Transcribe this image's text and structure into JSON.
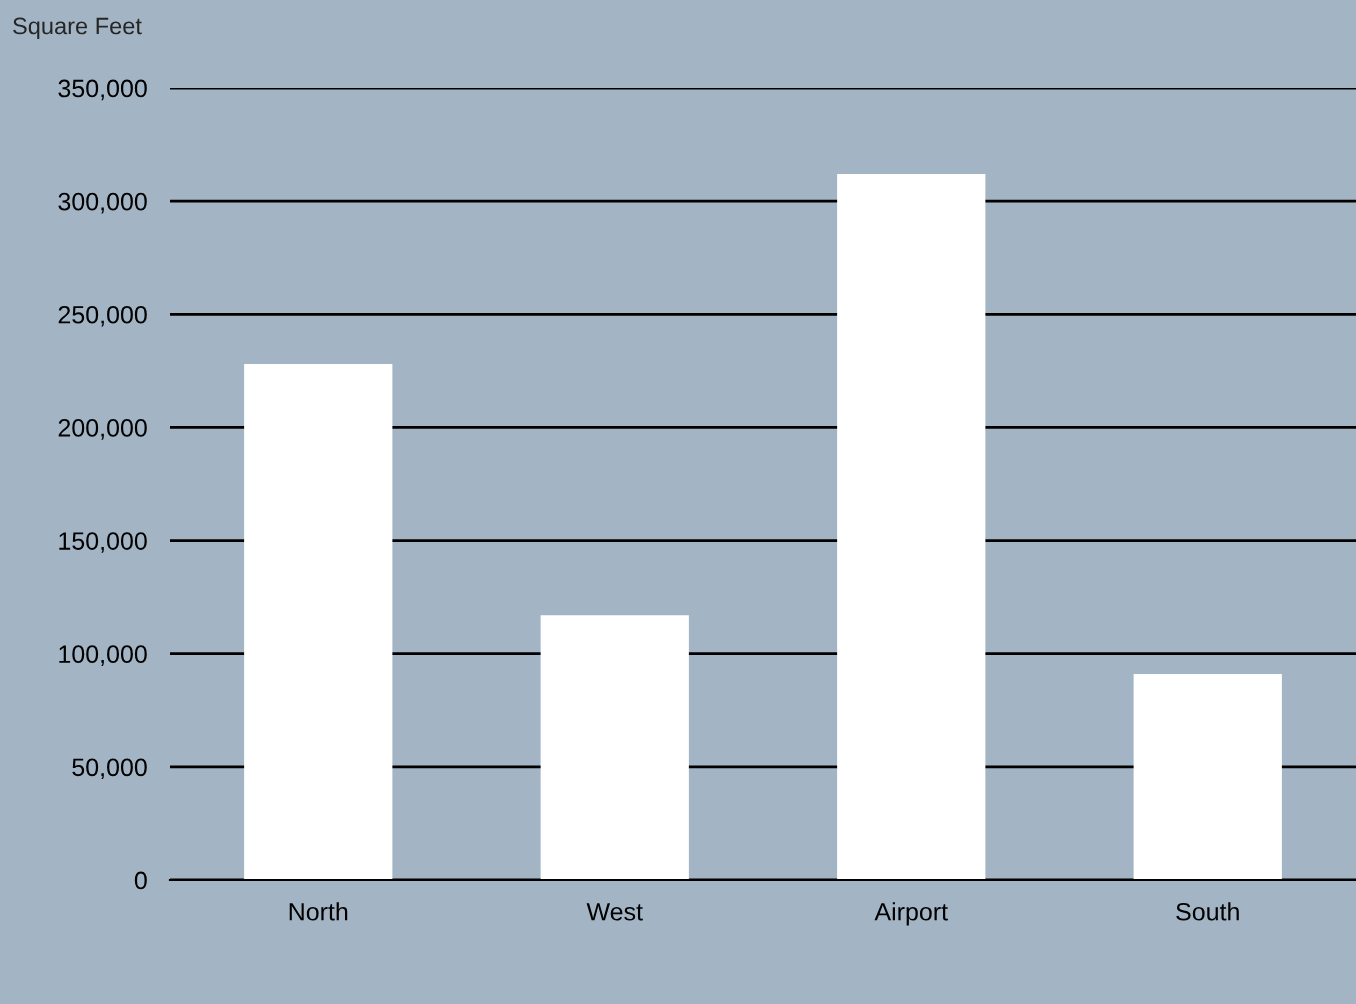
{
  "chart_data": {
    "type": "bar",
    "ylabel": "Square Feet",
    "categories": [
      "North",
      "West",
      "Airport",
      "South"
    ],
    "values": [
      228000,
      117000,
      312000,
      91000
    ],
    "color": "#ffffff",
    "ylim": [
      0,
      350000
    ],
    "yticks": [
      {
        "value": 0,
        "label": "0"
      },
      {
        "value": 50000,
        "label": "50,000"
      },
      {
        "value": 100000,
        "label": "100,000"
      },
      {
        "value": 150000,
        "label": "150,000"
      },
      {
        "value": 200000,
        "label": "200,000"
      },
      {
        "value": 250000,
        "label": "250,000"
      },
      {
        "value": 300000,
        "label": "300,000"
      },
      {
        "value": 350000,
        "label": "350,000"
      }
    ],
    "grid": "y"
  }
}
